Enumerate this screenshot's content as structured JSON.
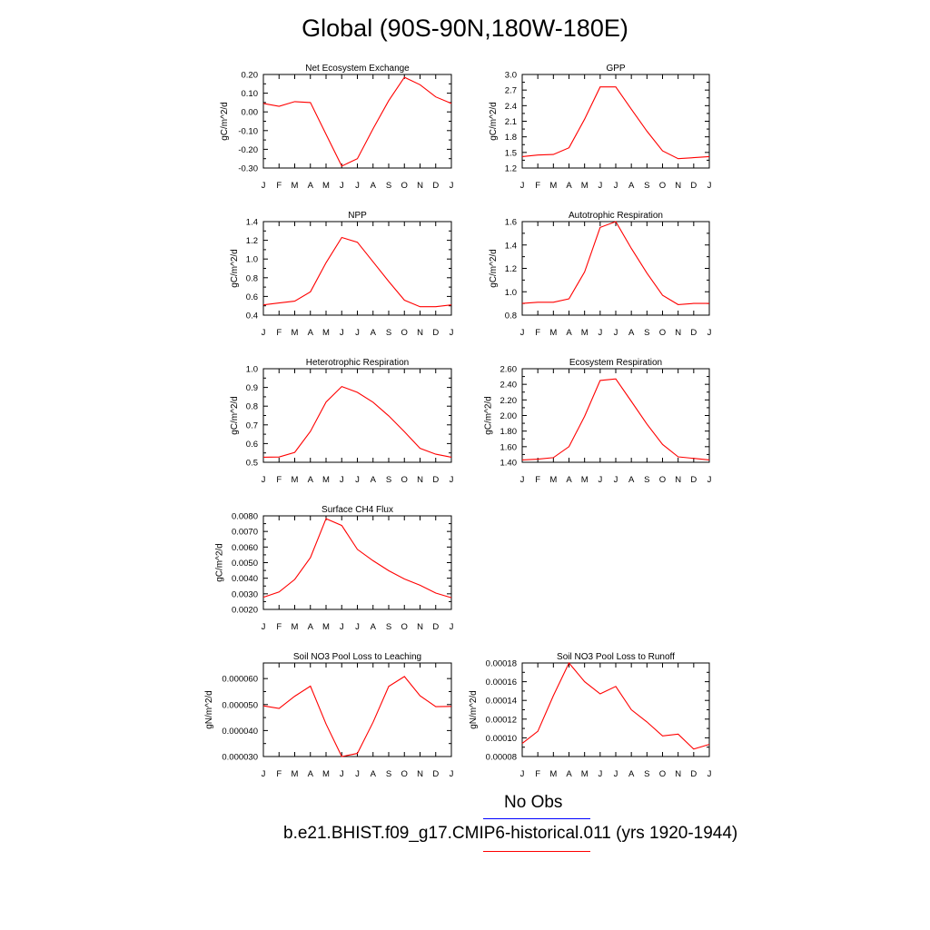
{
  "title": "Global (90S-90N,180W-180E)",
  "colors": {
    "model": "#ff0000",
    "obs": "#0000ff"
  },
  "legend": {
    "obs_label": "No Obs",
    "model_label": "b.e21.BHIST.f09_g17.CMIP6-historical.011 (yrs 1920-1944)"
  },
  "chart_data": [
    {
      "type": "line",
      "title": "Net Ecosystem Exchange",
      "ylabel": "gC/m^2/d",
      "categories": [
        "J",
        "F",
        "M",
        "A",
        "M",
        "J",
        "J",
        "A",
        "S",
        "O",
        "N",
        "D",
        "J"
      ],
      "ylim": [
        -0.3,
        0.2
      ],
      "yticks": [
        "-0.30",
        "-0.20",
        "-0.10",
        "0.00",
        "0.10",
        "0.20"
      ],
      "ytick_values": [
        -0.3,
        -0.2,
        -0.1,
        0.0,
        0.1,
        0.2
      ],
      "series": [
        {
          "values": [
            0.045,
            0.03,
            0.055,
            0.05,
            -0.12,
            -0.29,
            -0.25,
            -0.09,
            0.06,
            0.185,
            0.145,
            0.08,
            0.045
          ]
        }
      ]
    },
    {
      "type": "line",
      "title": "GPP",
      "ylabel": "gC/m^2/d",
      "categories": [
        "J",
        "F",
        "M",
        "A",
        "M",
        "J",
        "J",
        "A",
        "S",
        "O",
        "N",
        "D",
        "J"
      ],
      "ylim": [
        1.2,
        3.0
      ],
      "yticks": [
        "1.2",
        "1.5",
        "1.8",
        "2.1",
        "2.4",
        "2.7",
        "3.0"
      ],
      "ytick_values": [
        1.2,
        1.5,
        1.8,
        2.1,
        2.4,
        2.7,
        3.0
      ],
      "series": [
        {
          "values": [
            1.42,
            1.45,
            1.46,
            1.59,
            2.14,
            2.76,
            2.76,
            2.33,
            1.91,
            1.53,
            1.38,
            1.4,
            1.42
          ]
        }
      ]
    },
    {
      "type": "line",
      "title": "NPP",
      "ylabel": "gC/m^2/d",
      "categories": [
        "J",
        "F",
        "M",
        "A",
        "M",
        "J",
        "J",
        "A",
        "S",
        "O",
        "N",
        "D",
        "J"
      ],
      "ylim": [
        0.4,
        1.4
      ],
      "yticks": [
        "0.4",
        "0.6",
        "0.8",
        "1.0",
        "1.2",
        "1.4"
      ],
      "ytick_values": [
        0.4,
        0.6,
        0.8,
        1.0,
        1.2,
        1.4
      ],
      "series": [
        {
          "values": [
            0.51,
            0.53,
            0.55,
            0.65,
            0.96,
            1.23,
            1.18,
            0.97,
            0.76,
            0.56,
            0.49,
            0.49,
            0.51
          ]
        }
      ]
    },
    {
      "type": "line",
      "title": "Autotrophic Respiration",
      "ylabel": "gC/m^2/d",
      "categories": [
        "J",
        "F",
        "M",
        "A",
        "M",
        "J",
        "J",
        "A",
        "S",
        "O",
        "N",
        "D",
        "J"
      ],
      "ylim": [
        0.8,
        1.6
      ],
      "yticks": [
        "0.8",
        "1.0",
        "1.2",
        "1.4",
        "1.6"
      ],
      "ytick_values": [
        0.8,
        1.0,
        1.2,
        1.4,
        1.6
      ],
      "series": [
        {
          "values": [
            0.9,
            0.91,
            0.91,
            0.94,
            1.17,
            1.55,
            1.6,
            1.37,
            1.16,
            0.97,
            0.89,
            0.9,
            0.9
          ]
        }
      ]
    },
    {
      "type": "line",
      "title": "Heterotrophic Respiration",
      "ylabel": "gC/m^2/d",
      "categories": [
        "J",
        "F",
        "M",
        "A",
        "M",
        "J",
        "J",
        "A",
        "S",
        "O",
        "N",
        "D",
        "J"
      ],
      "ylim": [
        0.5,
        1.0
      ],
      "yticks": [
        "0.5",
        "0.6",
        "0.7",
        "0.8",
        "0.9",
        "1.0"
      ],
      "ytick_values": [
        0.5,
        0.6,
        0.7,
        0.8,
        0.9,
        1.0
      ],
      "series": [
        {
          "values": [
            0.527,
            0.528,
            0.553,
            0.665,
            0.822,
            0.905,
            0.874,
            0.821,
            0.748,
            0.663,
            0.575,
            0.543,
            0.527
          ]
        }
      ]
    },
    {
      "type": "line",
      "title": "Ecosystem Respiration",
      "ylabel": "gC/m^2/d",
      "categories": [
        "J",
        "F",
        "M",
        "A",
        "M",
        "J",
        "J",
        "A",
        "S",
        "O",
        "N",
        "D",
        "J"
      ],
      "ylim": [
        1.4,
        2.6
      ],
      "yticks": [
        "1.40",
        "1.60",
        "1.80",
        "2.00",
        "2.20",
        "2.40",
        "2.60"
      ],
      "ytick_values": [
        1.4,
        1.6,
        1.8,
        2.0,
        2.2,
        2.4,
        2.6
      ],
      "series": [
        {
          "values": [
            1.43,
            1.44,
            1.46,
            1.6,
            1.99,
            2.45,
            2.47,
            2.18,
            1.89,
            1.63,
            1.47,
            1.45,
            1.43
          ]
        }
      ]
    },
    {
      "type": "line",
      "title": "Surface CH4 Flux",
      "ylabel": "gC/m^2/d",
      "categories": [
        "J",
        "F",
        "M",
        "A",
        "M",
        "J",
        "J",
        "A",
        "S",
        "O",
        "N",
        "D",
        "J"
      ],
      "ylim": [
        0.002,
        0.008
      ],
      "yticks": [
        "0.0020",
        "0.0030",
        "0.0040",
        "0.0050",
        "0.0060",
        "0.0070",
        "0.0080"
      ],
      "ytick_values": [
        0.002,
        0.003,
        0.004,
        0.005,
        0.006,
        0.007,
        0.008
      ],
      "series": [
        {
          "values": [
            0.00278,
            0.00312,
            0.00392,
            0.00532,
            0.00782,
            0.00738,
            0.00585,
            0.00512,
            0.00448,
            0.00395,
            0.00355,
            0.00305,
            0.00275
          ]
        }
      ]
    },
    {
      "type": "line",
      "title": "Soil NO3 Pool Loss to Leaching",
      "ylabel": "gN/m^2/d",
      "categories": [
        "J",
        "F",
        "M",
        "A",
        "M",
        "J",
        "J",
        "A",
        "S",
        "O",
        "N",
        "D",
        "J"
      ],
      "ylim": [
        3e-05,
        6.6e-05
      ],
      "yticks": [
        "0.000030",
        "0.000040",
        "0.000050",
        "0.000060"
      ],
      "ytick_values": [
        3e-05,
        4e-05,
        5e-05,
        6e-05
      ],
      "series": [
        {
          "values": [
            4.95e-05,
            4.85e-05,
            5.32e-05,
            5.71e-05,
            4.25e-05,
            3e-05,
            3.12e-05,
            4.32e-05,
            5.7e-05,
            6.08e-05,
            5.34e-05,
            4.92e-05,
            4.93e-05
          ]
        }
      ]
    },
    {
      "type": "line",
      "title": "Soil NO3 Pool Loss to Runoff",
      "ylabel": "gN/m^2/d",
      "categories": [
        "J",
        "F",
        "M",
        "A",
        "M",
        "J",
        "J",
        "A",
        "S",
        "O",
        "N",
        "D",
        "J"
      ],
      "ylim": [
        8e-05,
        0.00018
      ],
      "yticks": [
        "0.00008",
        "0.00010",
        "0.00012",
        "0.00014",
        "0.00016",
        "0.00018"
      ],
      "ytick_values": [
        8e-05,
        0.0001,
        0.00012,
        0.00014,
        0.00016,
        0.00018
      ],
      "series": [
        {
          "values": [
            9.4e-05,
            0.000107,
            0.000145,
            0.00018,
            0.00016,
            0.000147,
            0.000155,
            0.00013,
            0.000117,
            0.000102,
            0.000104,
            8.8e-05,
            9.3e-05
          ]
        }
      ]
    }
  ]
}
